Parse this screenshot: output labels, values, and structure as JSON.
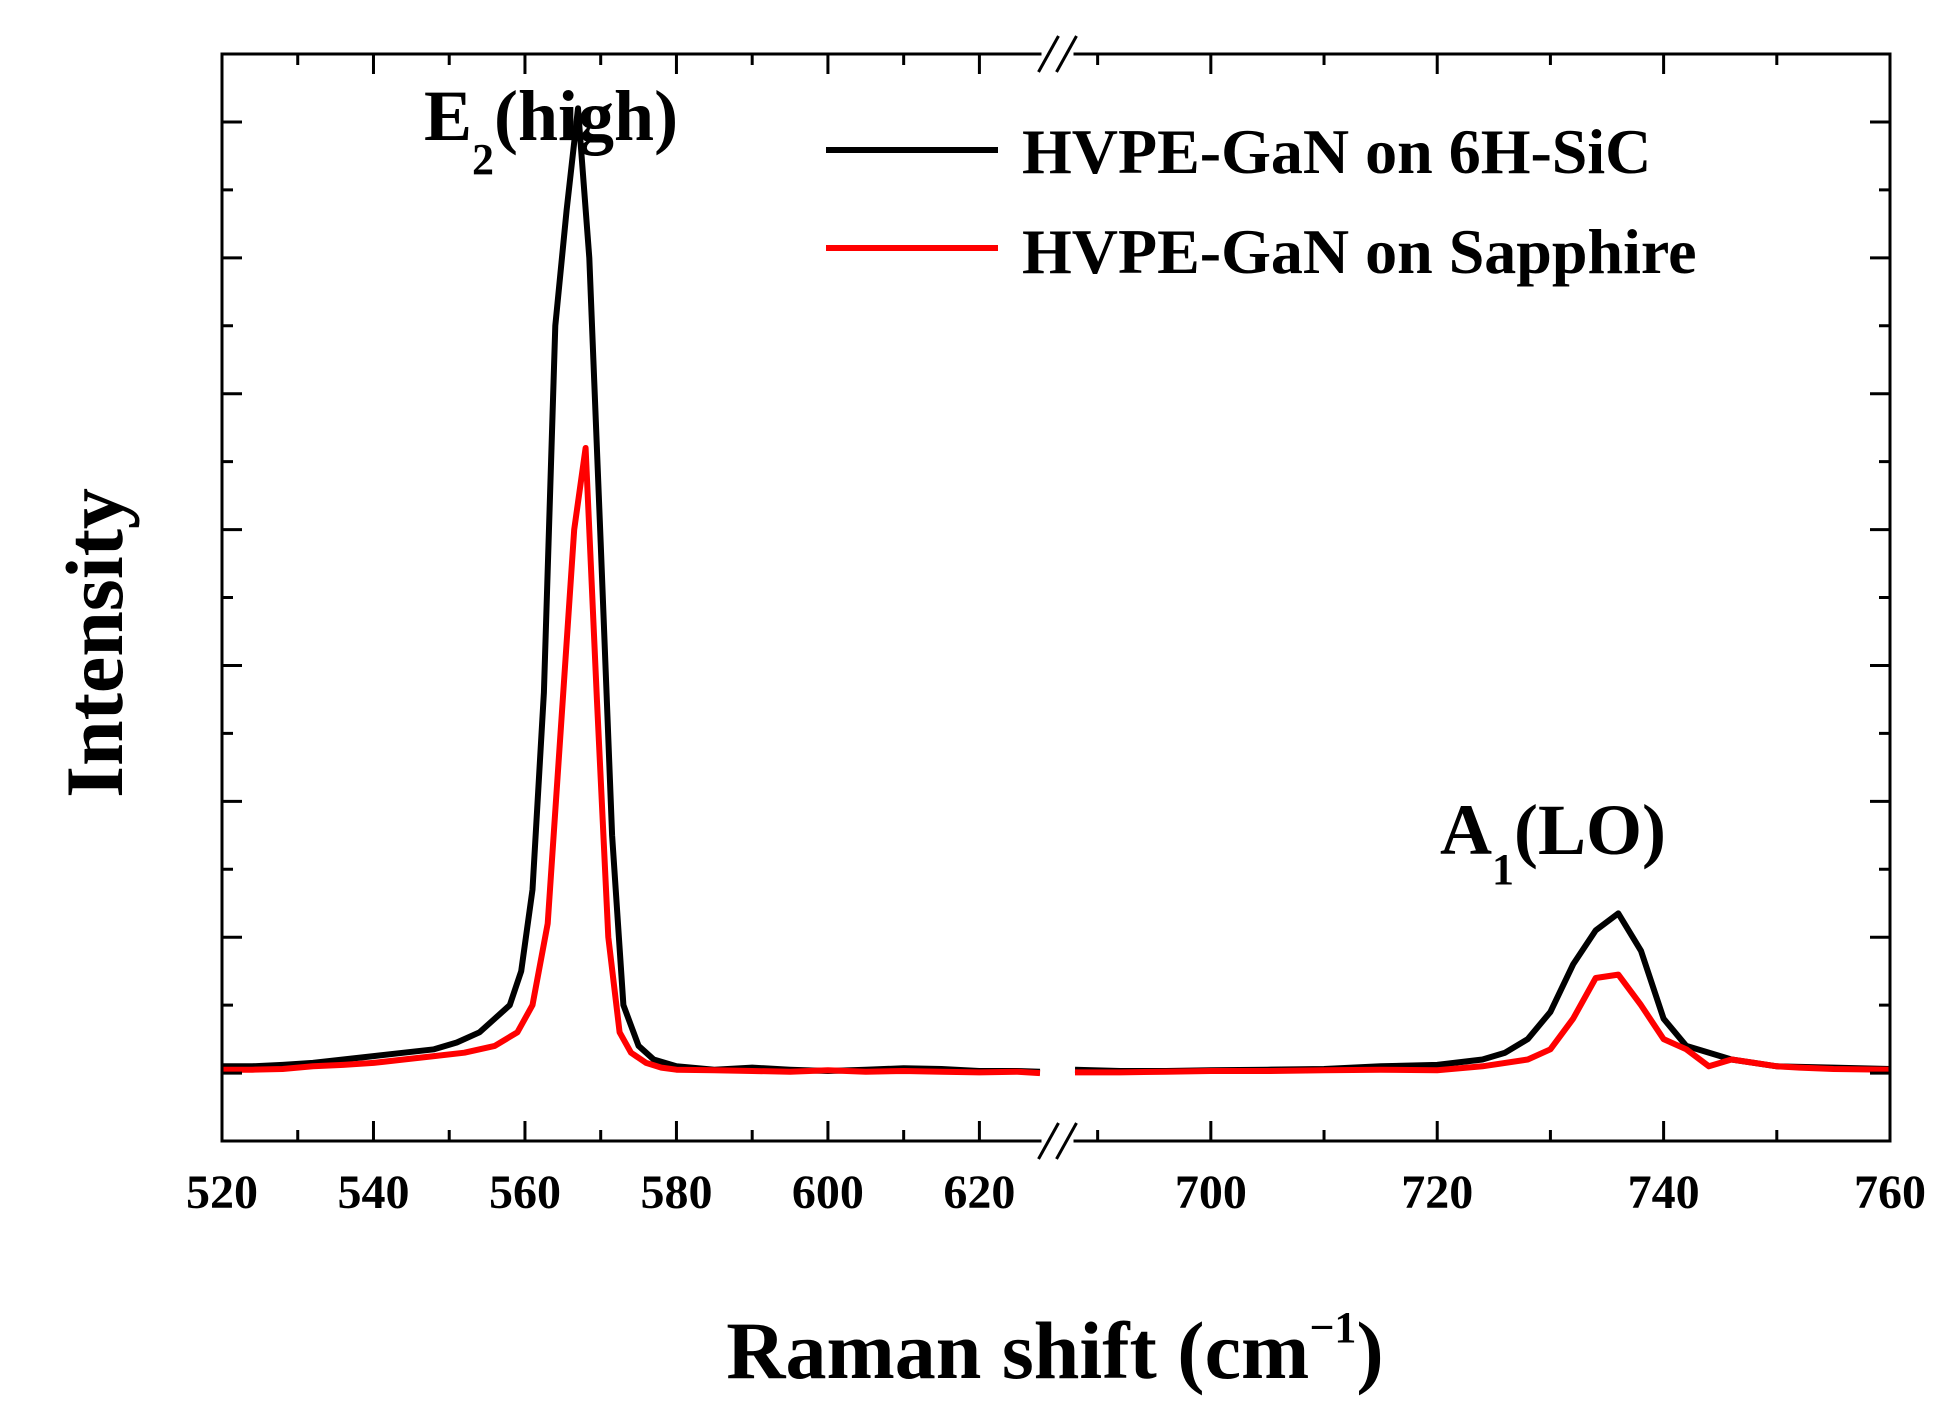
{
  "chart_data": {
    "type": "line",
    "title": "",
    "xlabel": "Raman shift (cm",
    "xlabel_sup": "−1",
    "xlabel_close": ")",
    "ylabel": "Intensity",
    "x_axis_break": true,
    "x_segments": [
      {
        "range": [
          520,
          628
        ],
        "ticks": [
          520,
          540,
          560,
          580,
          600,
          620
        ],
        "tick_labels": [
          "520",
          "540",
          "560",
          "580",
          "600",
          "620"
        ]
      },
      {
        "range": [
          688,
          760
        ],
        "ticks": [
          700,
          720,
          740,
          760
        ],
        "tick_labels": [
          "700",
          "720",
          "740",
          "760"
        ]
      }
    ],
    "ylim": [
      -0.1,
      1.5
    ],
    "y_ticks_shown": false,
    "legend": {
      "position": "top-right"
    },
    "annotations": [
      {
        "name": "e2-high",
        "main": "E",
        "sub": "2",
        "rest": "(high)",
        "x": 567,
        "y": 1.32
      },
      {
        "name": "a1-lo",
        "main": "A",
        "sub": "1",
        "rest": "(LO)",
        "x": 735,
        "y": 0.29
      }
    ],
    "series": [
      {
        "name": "HVPE-GaN on 6H-SiC",
        "color": "#000000",
        "x": [
          520,
          524,
          528,
          532,
          536,
          540,
          544,
          548,
          551,
          554,
          556,
          558,
          559.5,
          561,
          562.5,
          564,
          565.5,
          567,
          568.5,
          570,
          571.5,
          573,
          575,
          577,
          580,
          585,
          590,
          595,
          600,
          605,
          610,
          615,
          620,
          625,
          628,
          688,
          692,
          696,
          700,
          705,
          710,
          715,
          720,
          724,
          726,
          728,
          730,
          732,
          734,
          736,
          738,
          740,
          742,
          746,
          750,
          755,
          760
        ],
        "y": [
          0.01,
          0.01,
          0.012,
          0.015,
          0.02,
          0.025,
          0.03,
          0.035,
          0.045,
          0.06,
          0.08,
          0.1,
          0.15,
          0.27,
          0.56,
          1.1,
          1.27,
          1.42,
          1.2,
          0.78,
          0.35,
          0.1,
          0.04,
          0.02,
          0.01,
          0.005,
          0.008,
          0.005,
          0.003,
          0.005,
          0.007,
          0.006,
          0.003,
          0.003,
          0.002,
          0.005,
          0.003,
          0.003,
          0.004,
          0.005,
          0.006,
          0.01,
          0.012,
          0.02,
          0.03,
          0.05,
          0.09,
          0.16,
          0.21,
          0.235,
          0.18,
          0.08,
          0.04,
          0.02,
          0.01,
          0.008,
          0.006
        ]
      },
      {
        "name": "HVPE-GaN on Sapphire",
        "color": "#ff0000",
        "x": [
          520,
          524,
          528,
          532,
          536,
          540,
          544,
          548,
          552,
          556,
          559,
          561,
          563,
          565,
          566.5,
          568,
          569.5,
          571,
          572.5,
          574,
          576,
          578,
          580,
          585,
          590,
          595,
          600,
          605,
          610,
          615,
          620,
          625,
          628,
          688,
          692,
          696,
          700,
          705,
          710,
          715,
          720,
          724,
          728,
          730,
          732,
          734,
          736,
          738,
          740,
          742,
          744,
          746,
          748,
          750,
          752,
          755,
          760
        ],
        "y": [
          0.005,
          0.005,
          0.006,
          0.01,
          0.012,
          0.015,
          0.02,
          0.025,
          0.03,
          0.04,
          0.06,
          0.1,
          0.22,
          0.55,
          0.8,
          0.92,
          0.55,
          0.2,
          0.06,
          0.03,
          0.015,
          0.008,
          0.005,
          0.004,
          0.003,
          0.002,
          0.004,
          0.002,
          0.003,
          0.002,
          0.001,
          0.002,
          0.0,
          0.001,
          0.001,
          0.002,
          0.003,
          0.003,
          0.004,
          0.005,
          0.004,
          0.01,
          0.02,
          0.035,
          0.08,
          0.14,
          0.145,
          0.1,
          0.05,
          0.035,
          0.01,
          0.02,
          0.015,
          0.01,
          0.008,
          0.006,
          0.005
        ]
      }
    ]
  }
}
